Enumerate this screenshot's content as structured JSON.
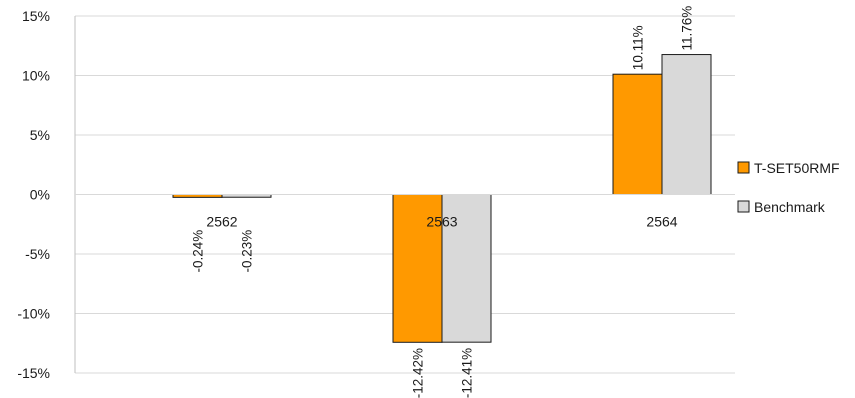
{
  "chart_data": {
    "type": "bar",
    "categories": [
      "2562",
      "2563",
      "2564"
    ],
    "series": [
      {
        "name": "T-SET50RMF",
        "values": [
          -0.24,
          -12.42,
          10.11
        ],
        "labels": [
          "-0.24%",
          "-12.42%",
          "10.11%"
        ],
        "color": "#FF9900"
      },
      {
        "name": "Benchmark",
        "values": [
          -0.23,
          -12.41,
          11.76
        ],
        "labels": [
          "-0.23%",
          "-12.41%",
          "11.76%"
        ],
        "color": "#D9D9D9"
      }
    ],
    "ylim": [
      -15,
      15
    ],
    "yticks": [
      15,
      10,
      5,
      0,
      -5,
      -10,
      -15
    ],
    "ytick_labels": [
      "15%",
      "10%",
      "5%",
      "0%",
      "-5%",
      "-10%",
      "-15%"
    ],
    "grid": true,
    "legend_position": "right",
    "bar_outline_color": "#1a1a1a",
    "grid_color": "#d9d9d9"
  }
}
